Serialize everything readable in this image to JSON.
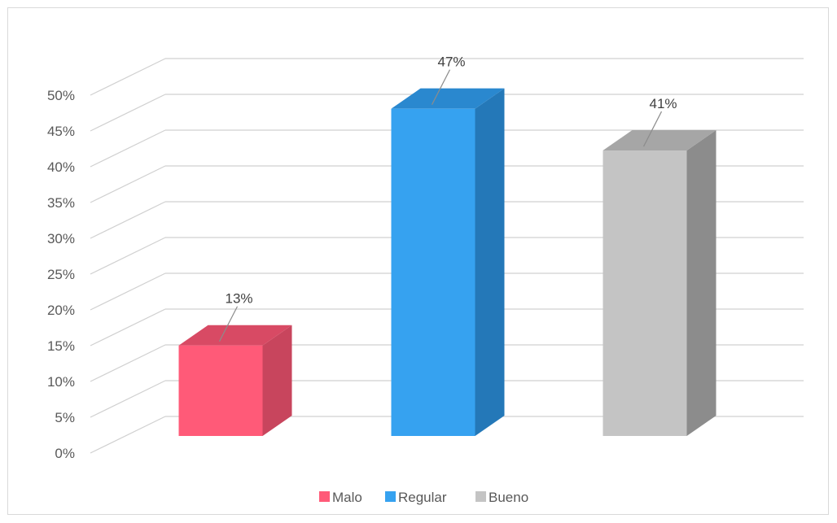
{
  "chart_data": {
    "type": "bar",
    "categories": [
      "Malo",
      "Regular",
      "Bueno"
    ],
    "values": [
      13,
      47,
      41
    ],
    "data_labels": [
      "13%",
      "47%",
      "41%"
    ],
    "colors": {
      "Malo": {
        "front": "#ff5a78",
        "side": "#c8455d",
        "top": "#d84a64"
      },
      "Regular": {
        "front": "#36a2f0",
        "side": "#2478b8",
        "top": "#2a88cf"
      },
      "Bueno": {
        "front": "#c4c4c4",
        "side": "#8c8c8c",
        "top": "#a6a6a6"
      }
    },
    "ylim": [
      0,
      50
    ],
    "yticks": [
      0,
      5,
      10,
      15,
      20,
      25,
      30,
      35,
      40,
      45,
      50
    ],
    "ytick_labels": [
      "0%",
      "5%",
      "10%",
      "15%",
      "20%",
      "25%",
      "30%",
      "35%",
      "40%",
      "45%",
      "50%"
    ],
    "grid": true,
    "three_d": true,
    "legend": {
      "placement": "bottom",
      "entries": [
        "Malo",
        "Regular",
        "Bueno"
      ]
    },
    "title": "",
    "xlabel": "",
    "ylabel": ""
  }
}
